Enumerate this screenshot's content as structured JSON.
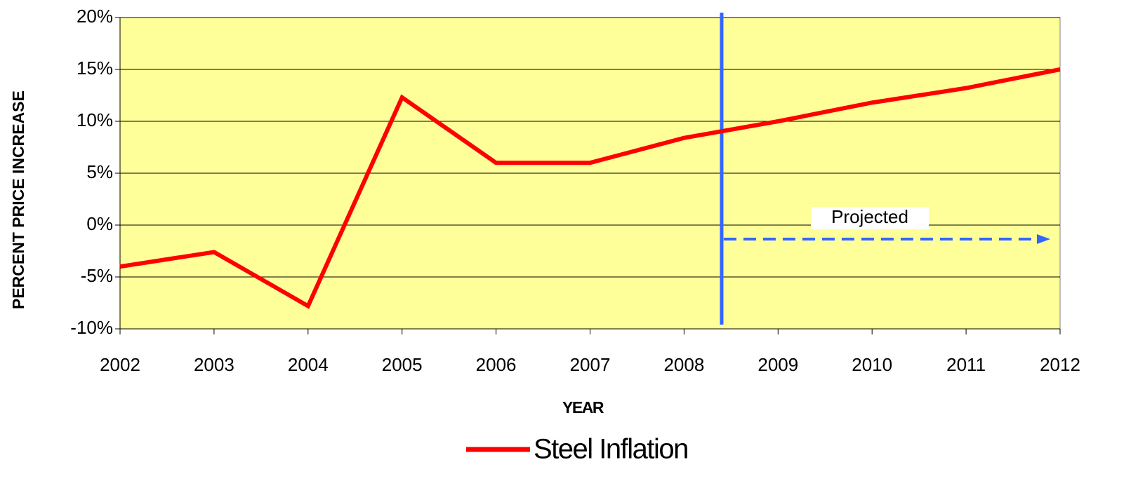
{
  "chart_data": {
    "type": "line",
    "x_label": "YEAR",
    "y_label": "PERCENT PRICE INCREASE",
    "categories": [
      "2002",
      "2003",
      "2004",
      "2005",
      "2006",
      "2007",
      "2008",
      "2009",
      "2010",
      "2011",
      "2012"
    ],
    "series": [
      {
        "name": "Steel Inflation",
        "color": "#ff0000",
        "values": [
          -4,
          -2.6,
          -7.8,
          12.3,
          6,
          6,
          8.4,
          10,
          11.8,
          13.2,
          15
        ]
      }
    ],
    "ylim": [
      -10,
      20
    ],
    "yticks": [
      {
        "value": -10,
        "label": "-10%"
      },
      {
        "value": -5,
        "label": "-5%"
      },
      {
        "value": 0,
        "label": "0%"
      },
      {
        "value": 5,
        "label": "5%"
      },
      {
        "value": 10,
        "label": "10%"
      },
      {
        "value": 15,
        "label": "15%"
      },
      {
        "value": 20,
        "label": "20%"
      }
    ],
    "grid": true,
    "plot_background": "#ffff99",
    "annotation": {
      "text": "Projected",
      "x": 2008.4,
      "color": "#3366ff"
    },
    "legend": "bottom"
  }
}
